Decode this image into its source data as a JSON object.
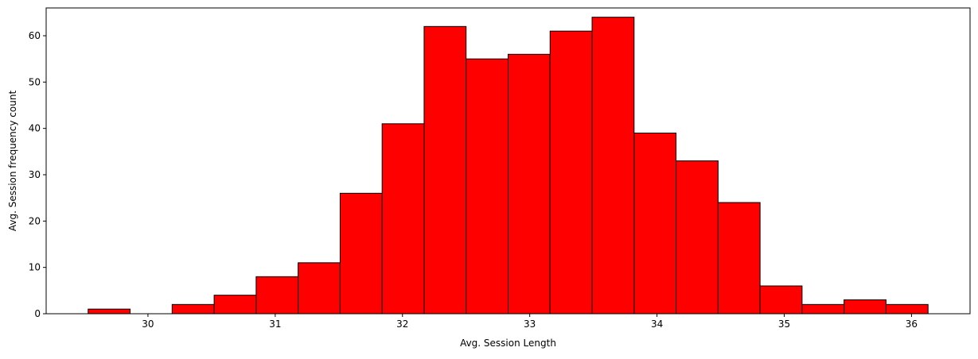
{
  "chart_data": {
    "type": "bar",
    "title": "",
    "xlabel": "Avg. Session Length",
    "ylabel": "Avg. Session frequency count",
    "bin_edges": [
      29.53,
      29.86,
      30.19,
      30.52,
      30.85,
      31.18,
      31.51,
      31.84,
      32.17,
      32.5,
      32.83,
      33.16,
      33.49,
      33.82,
      34.15,
      34.48,
      34.81,
      35.14,
      35.47,
      35.8,
      36.13
    ],
    "values": [
      1,
      0,
      2,
      4,
      8,
      11,
      26,
      41,
      62,
      55,
      56,
      61,
      64,
      39,
      33,
      24,
      6,
      2,
      3,
      2
    ],
    "xlim": [
      29.2,
      36.46
    ],
    "ylim": [
      0,
      66
    ],
    "xticks": [
      30,
      31,
      32,
      33,
      34,
      35,
      36
    ],
    "yticks": [
      0,
      10,
      20,
      30,
      40,
      50,
      60
    ],
    "grid": false,
    "bar_color": "#ff0000",
    "edge_color": "#000000"
  }
}
